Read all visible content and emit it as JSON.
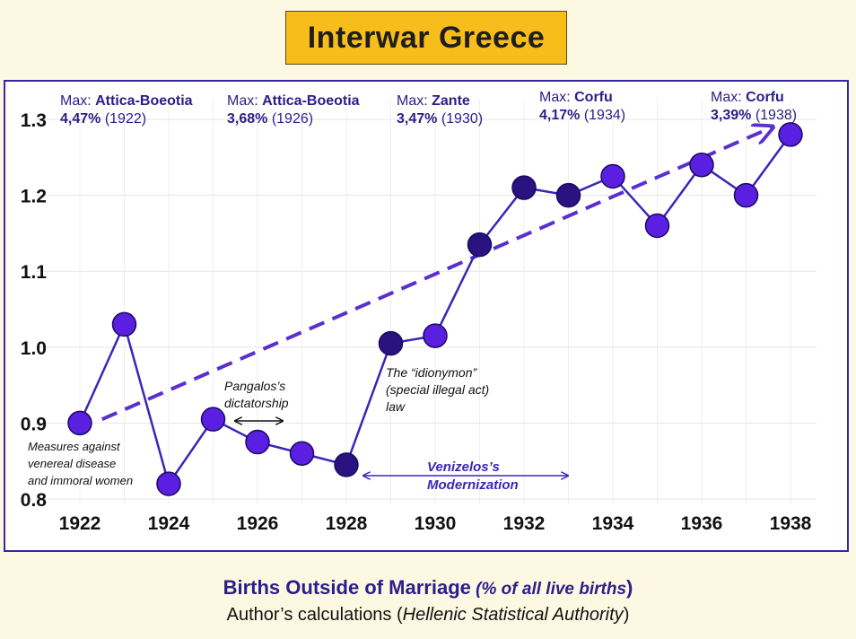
{
  "title": "Interwar Greece",
  "caption": {
    "main": "Births Outside of Marriage",
    "paren_open": " (",
    "paren_text": "% of all live births",
    "paren_close": ")",
    "source_pre": "Author’s calculations (",
    "source_it": "Hellenic Statistical Authority",
    "source_post": ")"
  },
  "chart_data": {
    "type": "line",
    "x": [
      1922,
      1923,
      1924,
      1925,
      1926,
      1927,
      1928,
      1929,
      1930,
      1931,
      1932,
      1933,
      1934,
      1935,
      1936,
      1937,
      1938
    ],
    "values": [
      0.9,
      1.03,
      0.82,
      0.905,
      0.875,
      0.86,
      0.845,
      1.005,
      1.015,
      1.135,
      1.21,
      1.2,
      1.225,
      1.16,
      1.24,
      1.2,
      1.28
    ],
    "xticks": [
      "1922",
      "1924",
      "1926",
      "1928",
      "1930",
      "1932",
      "1934",
      "1936",
      "1938"
    ],
    "xtick_values": [
      1922,
      1924,
      1926,
      1928,
      1930,
      1932,
      1934,
      1936,
      1938
    ],
    "yticks": [
      "0.8",
      "0.9",
      "1.0",
      "1.1",
      "1.2",
      "1.3"
    ],
    "ytick_values": [
      0.8,
      0.9,
      1.0,
      1.1,
      1.2,
      1.3
    ],
    "xlim": [
      1922,
      1938
    ],
    "ylim": [
      0.8,
      1.3
    ],
    "grid": true,
    "trend": {
      "from": [
        1922.5,
        0.905
      ],
      "to": [
        1937.6,
        1.29
      ],
      "style": "dashed-arrow"
    },
    "max_labels": [
      {
        "prefix": "Max: ",
        "region": "Attica-Boeotia",
        "pct": "4,47%",
        "year": " (1922)"
      },
      {
        "prefix": "Max: ",
        "region": "Attica-Boeotia",
        "pct": "3,68%",
        "year": " (1926)"
      },
      {
        "prefix": "Max: ",
        "region": "Zante",
        "pct": "3,47%",
        "year": " (1930)"
      },
      {
        "prefix": "Max: ",
        "region": "Corfu",
        "pct": "4,17%",
        "year": " (1934)"
      },
      {
        "prefix": "Max: ",
        "region": "Corfu",
        "pct": "3,39%",
        "year": " (1938)"
      }
    ],
    "annotations": {
      "measures": [
        "Measures against",
        "venereal disease",
        "and immoral women"
      ],
      "pangalos": [
        "Pangalos’s",
        "dictatorship"
      ],
      "idionymon": [
        "The “idionymon”",
        "(special illegal act)",
        "law"
      ],
      "venizelos": [
        "Venizelos’s",
        "Modernization"
      ]
    },
    "colors": {
      "marker_fill": "#5a1fe0",
      "marker_dark": "#2a1280",
      "line": "#3a26b8",
      "trend": "#5a2fd0",
      "max_text": "#2b1e8a",
      "axis_text": "#111111",
      "frame": "#3326a8"
    }
  }
}
